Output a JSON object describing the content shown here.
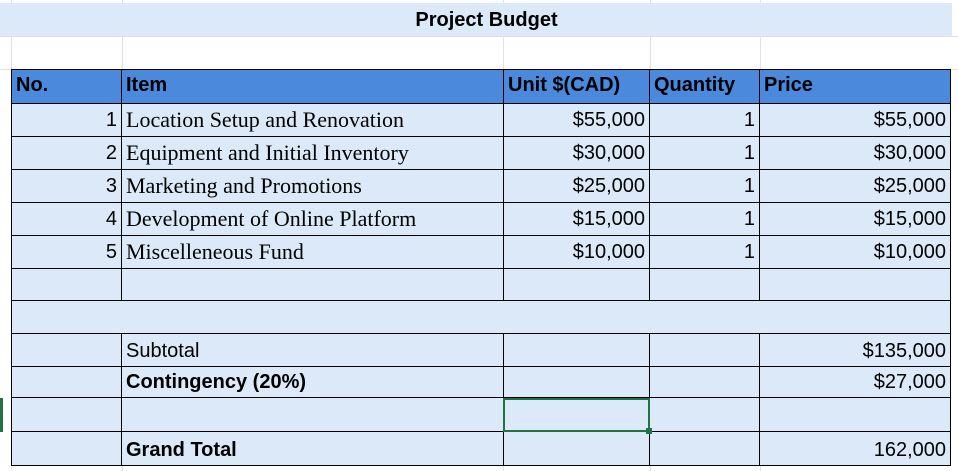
{
  "title": "Project Budget",
  "headers": {
    "no": "No.",
    "item": "Item",
    "unit": "Unit $(CAD)",
    "quantity": "Quantity",
    "price": "Price"
  },
  "items": [
    {
      "no": "1",
      "item": "Location Setup and Renovation",
      "unit": "$55,000",
      "quantity": "1",
      "price": "$55,000"
    },
    {
      "no": "2",
      "item": "Equipment and Initial Inventory",
      "unit": "$30,000",
      "quantity": "1",
      "price": "$30,000"
    },
    {
      "no": "3",
      "item": "Marketing and Promotions",
      "unit": "$25,000",
      "quantity": "1",
      "price": "$25,000"
    },
    {
      "no": "4",
      "item": "Development of Online Platform",
      "unit": "$15,000",
      "quantity": "1",
      "price": "$15,000"
    },
    {
      "no": "5",
      "item": "Miscelleneous Fund",
      "unit": "$10,000",
      "quantity": "1",
      "price": "$10,000"
    }
  ],
  "summary": {
    "subtotal_label": "Subtotal",
    "subtotal_value": "$135,000",
    "contingency_label": "Contingency (20%)",
    "contingency_value": "$27,000",
    "grand_total_label": "Grand Total",
    "grand_total_value": "162,000"
  },
  "colors": {
    "header": "#4a89dc",
    "band": "#dbe9f8",
    "selection": "#217346"
  }
}
